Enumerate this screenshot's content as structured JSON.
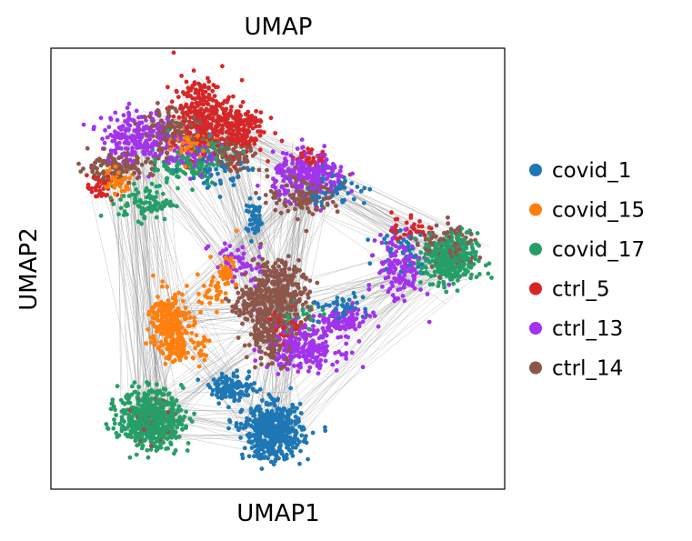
{
  "chart_data": {
    "type": "scatter",
    "title": "UMAP",
    "xlabel": "UMAP1",
    "ylabel": "UMAP2",
    "xlim": [
      0,
      100
    ],
    "ylim": [
      0,
      100
    ],
    "grid": false,
    "ticks_shown": false,
    "legend_position": "right-outside",
    "edge_color": "#888888",
    "series": [
      {
        "name": "covid_1",
        "color": "#1f77b4",
        "clusters": [
          {
            "x": 49,
            "y": 13,
            "sx": 3.2,
            "sy": 3,
            "n": 520
          },
          {
            "x": 40,
            "y": 23,
            "sx": 2.5,
            "sy": 1.5,
            "n": 120
          },
          {
            "x": 45,
            "y": 61,
            "sx": 1,
            "sy": 2,
            "n": 50
          },
          {
            "x": 62,
            "y": 68,
            "sx": 4,
            "sy": 2,
            "n": 60
          },
          {
            "x": 63,
            "y": 41,
            "sx": 3,
            "sy": 1.5,
            "n": 50
          },
          {
            "x": 37,
            "y": 72,
            "sx": 4,
            "sy": 2,
            "n": 40
          },
          {
            "x": 78,
            "y": 55,
            "sx": 3,
            "sy": 3,
            "n": 40
          }
        ]
      },
      {
        "name": "covid_15",
        "color": "#ff7f0e",
        "clusters": [
          {
            "x": 26,
            "y": 38,
            "sx": 2.2,
            "sy": 3.5,
            "n": 220
          },
          {
            "x": 29,
            "y": 32,
            "sx": 2.5,
            "sy": 1.5,
            "n": 90
          },
          {
            "x": 31,
            "y": 78,
            "sx": 2,
            "sy": 2,
            "n": 60
          },
          {
            "x": 14,
            "y": 70,
            "sx": 2,
            "sy": 1.5,
            "n": 50
          },
          {
            "x": 36,
            "y": 45,
            "sx": 2,
            "sy": 3,
            "n": 40
          },
          {
            "x": 39,
            "y": 50,
            "sx": 1,
            "sy": 2,
            "n": 30
          }
        ]
      },
      {
        "name": "covid_17",
        "color": "#279e68",
        "clusters": [
          {
            "x": 22,
            "y": 16,
            "sx": 3.5,
            "sy": 3.2,
            "n": 560
          },
          {
            "x": 88,
            "y": 52,
            "sx": 3,
            "sy": 3,
            "n": 350
          },
          {
            "x": 21,
            "y": 65,
            "sx": 3,
            "sy": 2,
            "n": 90
          },
          {
            "x": 30,
            "y": 73,
            "sx": 4,
            "sy": 2,
            "n": 80
          },
          {
            "x": 36,
            "y": 77,
            "sx": 3,
            "sy": 2,
            "n": 60
          },
          {
            "x": 55,
            "y": 40,
            "sx": 3,
            "sy": 2,
            "n": 30
          }
        ]
      },
      {
        "name": "ctrl_5",
        "color": "#d62728",
        "clusters": [
          {
            "x": 33,
            "y": 85,
            "sx": 3,
            "sy": 4,
            "n": 260
          },
          {
            "x": 41,
            "y": 82,
            "sx": 3,
            "sy": 3,
            "n": 180
          },
          {
            "x": 11,
            "y": 68,
            "sx": 1.5,
            "sy": 1.5,
            "n": 40
          },
          {
            "x": 79,
            "y": 59,
            "sx": 2,
            "sy": 2,
            "n": 40
          },
          {
            "x": 57,
            "y": 75,
            "sx": 2,
            "sy": 1,
            "n": 30
          },
          {
            "x": 52,
            "y": 37,
            "sx": 2,
            "sy": 2,
            "n": 30
          }
        ]
      },
      {
        "name": "ctrl_13",
        "color": "#a333ec",
        "clusters": [
          {
            "x": 19,
            "y": 80,
            "sx": 4,
            "sy": 3,
            "n": 220
          },
          {
            "x": 57,
            "y": 71,
            "sx": 4,
            "sy": 2.5,
            "n": 240
          },
          {
            "x": 56,
            "y": 32,
            "sx": 4,
            "sy": 2.5,
            "n": 220
          },
          {
            "x": 64,
            "y": 38,
            "sx": 3,
            "sy": 1.5,
            "n": 100
          },
          {
            "x": 77,
            "y": 50,
            "sx": 2.5,
            "sy": 4,
            "n": 140
          },
          {
            "x": 32,
            "y": 76,
            "sx": 3,
            "sy": 2,
            "n": 80
          },
          {
            "x": 41,
            "y": 51,
            "sx": 3,
            "sy": 3,
            "n": 50
          }
        ]
      },
      {
        "name": "ctrl_14",
        "color": "#8c564b",
        "clusters": [
          {
            "x": 49,
            "y": 37,
            "sx": 3,
            "sy": 4,
            "n": 260
          },
          {
            "x": 50,
            "y": 44,
            "sx": 3.5,
            "sy": 2,
            "n": 150
          },
          {
            "x": 50,
            "y": 48,
            "sx": 3,
            "sy": 2.5,
            "n": 120
          },
          {
            "x": 14,
            "y": 73,
            "sx": 4,
            "sy": 1.5,
            "n": 130
          },
          {
            "x": 27,
            "y": 81,
            "sx": 3.5,
            "sy": 2.5,
            "n": 150
          },
          {
            "x": 40,
            "y": 76,
            "sx": 3,
            "sy": 2,
            "n": 90
          },
          {
            "x": 56,
            "y": 67,
            "sx": 4,
            "sy": 2.5,
            "n": 120
          },
          {
            "x": 88,
            "y": 55,
            "sx": 3,
            "sy": 2.5,
            "n": 90
          },
          {
            "x": 43,
            "y": 42,
            "sx": 2,
            "sy": 2,
            "n": 50
          },
          {
            "x": 22,
            "y": 16,
            "sx": 2.5,
            "sy": 2.5,
            "n": 40
          }
        ]
      }
    ],
    "paga_links": [
      [
        49,
        13,
        22,
        16
      ],
      [
        49,
        13,
        49,
        37
      ],
      [
        49,
        13,
        26,
        38
      ],
      [
        22,
        16,
        26,
        38
      ],
      [
        22,
        16,
        49,
        37
      ],
      [
        26,
        38,
        49,
        40
      ],
      [
        49,
        40,
        56,
        32
      ],
      [
        49,
        40,
        57,
        71
      ],
      [
        49,
        40,
        88,
        52
      ],
      [
        57,
        71,
        88,
        52
      ],
      [
        57,
        71,
        33,
        85
      ],
      [
        33,
        85,
        19,
        80
      ],
      [
        19,
        80,
        49,
        40
      ],
      [
        33,
        85,
        49,
        40
      ],
      [
        88,
        52,
        49,
        13
      ],
      [
        19,
        80,
        26,
        38
      ],
      [
        57,
        71,
        26,
        38
      ],
      [
        33,
        85,
        88,
        52
      ],
      [
        19,
        80,
        22,
        16
      ],
      [
        57,
        71,
        49,
        13
      ],
      [
        14,
        73,
        22,
        16
      ],
      [
        40,
        76,
        49,
        40
      ],
      [
        64,
        38,
        88,
        52
      ],
      [
        57,
        71,
        45,
        55
      ]
    ]
  },
  "legend": {
    "items": [
      {
        "label": "covid_1",
        "color": "#1f77b4"
      },
      {
        "label": "covid_15",
        "color": "#ff7f0e"
      },
      {
        "label": "covid_17",
        "color": "#279e68"
      },
      {
        "label": "ctrl_5",
        "color": "#d62728"
      },
      {
        "label": "ctrl_13",
        "color": "#a333ec"
      },
      {
        "label": "ctrl_14",
        "color": "#8c564b"
      }
    ]
  }
}
